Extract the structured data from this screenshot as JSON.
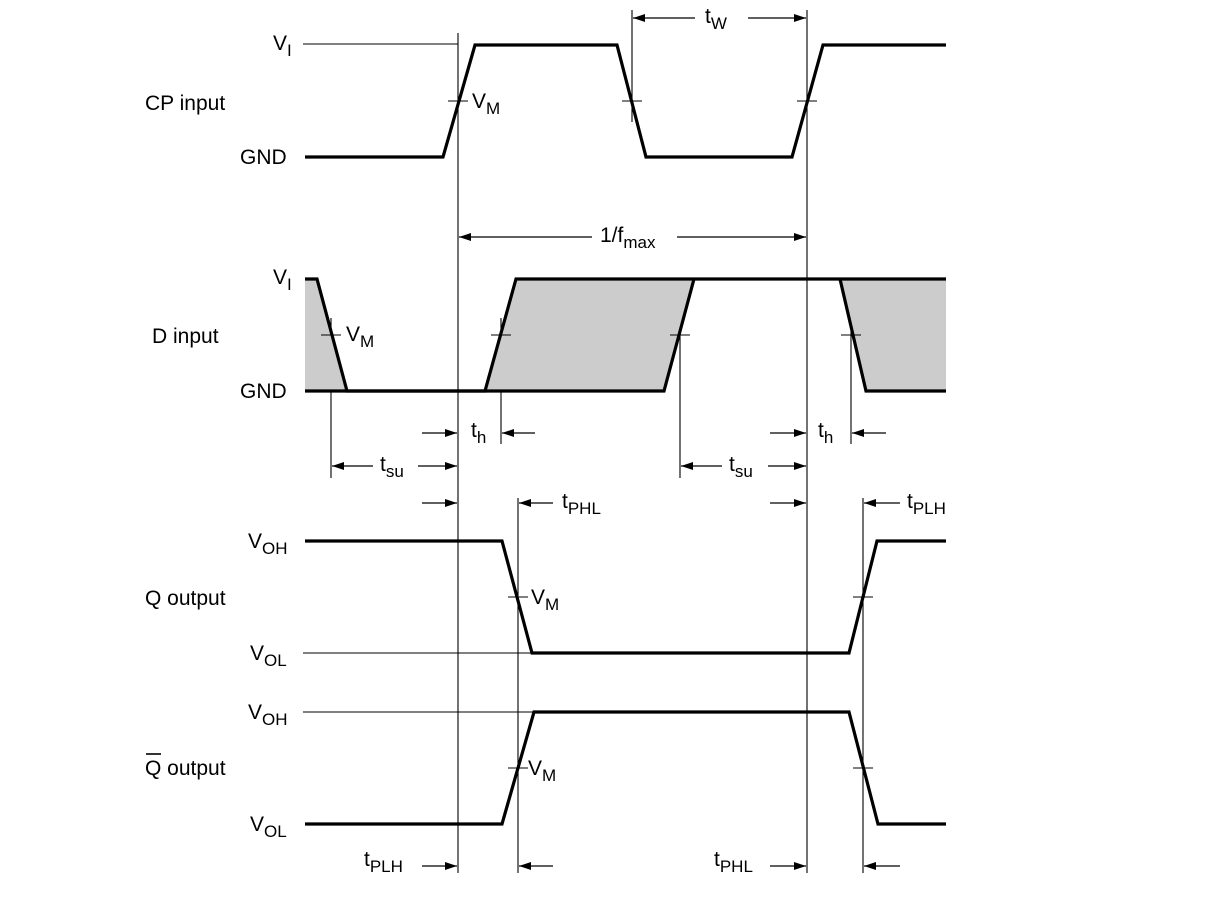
{
  "signals": {
    "cp": {
      "label": "CP input",
      "high": "V",
      "high_sub": "I",
      "low": "GND"
    },
    "d": {
      "label": "D input",
      "high": "V",
      "high_sub": "I",
      "low": "GND"
    },
    "q": {
      "label": "Q output",
      "high": "V",
      "high_sub": "OH",
      "low": "V",
      "low_sub": "OL"
    },
    "qbar": {
      "label_bar": "Q",
      "label_rest": " output",
      "high": "V",
      "high_sub": "OH",
      "low": "V",
      "low_sub": "OL"
    }
  },
  "vm": {
    "main": "V",
    "sub": "M"
  },
  "timings": {
    "tw": {
      "main": "t",
      "sub": "W"
    },
    "fmax": {
      "main": "1/f",
      "sub": "max"
    },
    "th": {
      "main": "t",
      "sub": "h"
    },
    "tsu": {
      "main": "t",
      "sub": "su"
    },
    "tphl": {
      "main": "t",
      "sub": "PHL"
    },
    "tplh": {
      "main": "t",
      "sub": "PLH"
    }
  },
  "colors": {
    "line": "#000000",
    "shade": "#cccccc"
  }
}
